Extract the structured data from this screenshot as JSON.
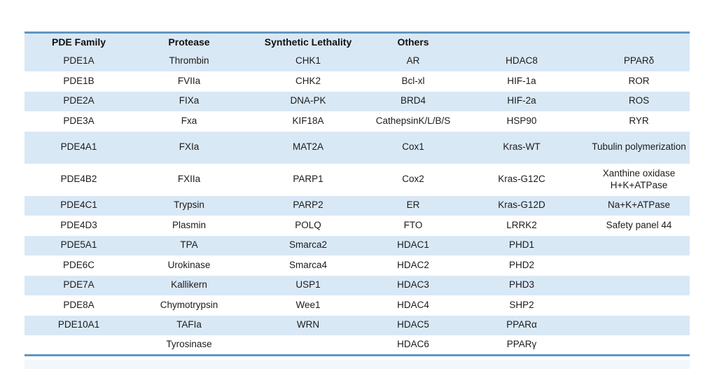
{
  "table": {
    "headers": [
      "PDE Family",
      "Protease",
      "Synthetic Lethality",
      "Others",
      "",
      ""
    ],
    "rows": [
      [
        "PDE1A",
        "Thrombin",
        "CHK1",
        "AR",
        "HDAC8",
        "PPARδ"
      ],
      [
        "PDE1B",
        "FVIIa",
        "CHK2",
        "Bcl-xl",
        "HIF-1a",
        "ROR"
      ],
      [
        "PDE2A",
        "FIXa",
        "DNA-PK",
        "BRD4",
        "HIF-2a",
        "ROS"
      ],
      [
        "PDE3A",
        "Fxa",
        "KIF18A",
        "CathepsinK/L/B/S",
        "HSP90",
        "RYR"
      ],
      [
        "PDE4A1",
        "FXIa",
        "MAT2A",
        "Cox1",
        "Kras-WT",
        "Tubulin polymerization"
      ],
      [
        "PDE4B2",
        "FXIIa",
        "PARP1",
        "Cox2",
        "Kras-G12C",
        "Xanthine oxidase\nH+K+ATPase"
      ],
      [
        "PDE4C1",
        "Trypsin",
        "PARP2",
        "ER",
        "Kras-G12D",
        "Na+K+ATPase"
      ],
      [
        "PDE4D3",
        "Plasmin",
        "POLQ",
        "FTO",
        "LRRK2",
        "Safety panel 44"
      ],
      [
        "PDE5A1",
        "TPA",
        "Smarca2",
        "HDAC1",
        "PHD1",
        ""
      ],
      [
        "PDE6C",
        "Urokinase",
        "Smarca4",
        "HDAC2",
        "PHD2",
        ""
      ],
      [
        "PDE7A",
        "Kallikern",
        "USP1",
        "HDAC3",
        "PHD3",
        ""
      ],
      [
        "PDE8A",
        "Chymotrypsin",
        "Wee1",
        "HDAC4",
        "SHP2",
        ""
      ],
      [
        "PDE10A1",
        "TAFIa",
        "WRN",
        "HDAC5",
        "PPARα",
        ""
      ],
      [
        "",
        "Tyrosinase",
        "",
        "HDAC6",
        "PPARγ",
        ""
      ]
    ],
    "colors": {
      "stripe_blue": "#d9e8f5",
      "stripe_white": "#ffffff",
      "border_blue": "#6295c2",
      "text": "#1c1c1c"
    }
  }
}
